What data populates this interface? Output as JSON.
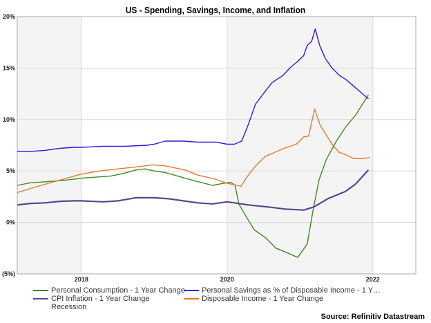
{
  "chart_data": {
    "type": "line",
    "title": "US - Spending, Savings, Income, and Inflation",
    "xlabel": "",
    "ylabel": "",
    "xlim": [
      2017.12,
      2022.59
    ],
    "ylim": [
      -5,
      20
    ],
    "yticks": [
      {
        "value": 20,
        "label": "20%"
      },
      {
        "value": 15,
        "label": "15%"
      },
      {
        "value": 10,
        "label": "10%"
      },
      {
        "value": 5,
        "label": "5%"
      },
      {
        "value": 0,
        "label": "0%"
      },
      {
        "value": -5,
        "label": "(5%)"
      }
    ],
    "xticks": [
      {
        "value": 2018,
        "label": "2018"
      },
      {
        "value": 2020,
        "label": "2020"
      },
      {
        "value": 2022,
        "label": "2022"
      }
    ],
    "bands": [
      {
        "from": 2017.12,
        "to": 2018,
        "color": "#f4f4f4"
      },
      {
        "from": 2020,
        "to": 2022,
        "color": "#f4f4f4"
      }
    ],
    "grid": true,
    "legend_position": "bottom",
    "series": [
      {
        "name": "Personal Consumption - 1 Year Change",
        "color": "#3f8a1f",
        "x": [
          2017.12,
          2017.3,
          2017.5,
          2017.7,
          2017.9,
          2018.0,
          2018.2,
          2018.4,
          2018.6,
          2018.75,
          2018.87,
          2019.0,
          2019.15,
          2019.35,
          2019.55,
          2019.8,
          2019.95,
          2020.05,
          2020.11,
          2020.16,
          2020.26,
          2020.37,
          2020.53,
          2020.67,
          2020.81,
          2020.97,
          2021.1,
          2021.18,
          2021.26,
          2021.36,
          2021.5,
          2021.62,
          2021.77,
          2021.94
        ],
        "values": [
          3.6,
          3.85,
          3.95,
          4.05,
          4.2,
          4.3,
          4.4,
          4.5,
          4.8,
          5.1,
          5.2,
          5.0,
          4.85,
          4.45,
          4.05,
          3.6,
          3.8,
          3.9,
          3.6,
          1.8,
          0.6,
          -0.7,
          -1.5,
          -2.5,
          -2.9,
          -3.4,
          -2.1,
          1.2,
          4.1,
          6.1,
          7.9,
          9.2,
          10.5,
          12.4
        ]
      },
      {
        "name": "Personal Savings as % of Disposable Income - 1 Y…",
        "color": "#3b12e0",
        "x": [
          2017.12,
          2017.3,
          2017.5,
          2017.7,
          2017.9,
          2018.0,
          2018.3,
          2018.6,
          2018.9,
          2019.0,
          2019.15,
          2019.4,
          2019.6,
          2019.85,
          2020.0,
          2020.1,
          2020.2,
          2020.29,
          2020.39,
          2020.53,
          2020.62,
          2020.77,
          2020.86,
          2020.96,
          2021.05,
          2021.1,
          2021.16,
          2021.21,
          2021.27,
          2021.35,
          2021.44,
          2021.54,
          2021.63,
          2021.94
        ],
        "values": [
          6.9,
          6.9,
          7.0,
          7.2,
          7.3,
          7.3,
          7.4,
          7.4,
          7.5,
          7.6,
          7.9,
          7.9,
          7.8,
          7.8,
          7.6,
          7.6,
          7.9,
          9.5,
          11.5,
          12.8,
          13.6,
          14.3,
          15.0,
          15.6,
          16.2,
          17.2,
          17.6,
          18.8,
          17.2,
          15.9,
          15.0,
          14.3,
          13.9,
          12.0
        ]
      },
      {
        "name": "CPI Inflation - 1 Year Change",
        "color": "#52488f",
        "x": [
          2017.12,
          2017.3,
          2017.5,
          2017.7,
          2017.9,
          2018.0,
          2018.3,
          2018.5,
          2018.75,
          2019.0,
          2019.2,
          2019.4,
          2019.6,
          2019.8,
          2020.0,
          2020.1,
          2020.29,
          2020.57,
          2020.8,
          2021.05,
          2021.19,
          2021.38,
          2021.62,
          2021.76,
          2021.94
        ],
        "values": [
          1.7,
          1.85,
          1.9,
          2.05,
          2.1,
          2.1,
          2.0,
          2.1,
          2.4,
          2.4,
          2.3,
          2.1,
          1.9,
          1.8,
          2.0,
          1.9,
          1.7,
          1.5,
          1.3,
          1.2,
          1.5,
          2.3,
          3.0,
          3.7,
          5.1
        ]
      },
      {
        "name": "Disposable Income - 1 Year Change",
        "color": "#e07a30",
        "x": [
          2017.12,
          2017.3,
          2017.5,
          2017.7,
          2017.9,
          2018.0,
          2018.25,
          2018.5,
          2018.77,
          2018.98,
          2019.15,
          2019.42,
          2019.6,
          2019.84,
          2020.0,
          2020.14,
          2020.19,
          2020.29,
          2020.38,
          2020.52,
          2020.65,
          2020.78,
          2020.95,
          2021.05,
          2021.12,
          2021.2,
          2021.28,
          2021.37,
          2021.45,
          2021.54,
          2021.62,
          2021.74,
          2021.85,
          2021.96
        ],
        "values": [
          2.9,
          3.3,
          3.7,
          4.1,
          4.5,
          4.7,
          5.0,
          5.2,
          5.4,
          5.6,
          5.5,
          5.1,
          4.6,
          4.2,
          3.8,
          3.6,
          3.5,
          4.6,
          5.4,
          6.4,
          6.8,
          7.2,
          7.6,
          8.3,
          8.4,
          11.0,
          9.4,
          8.4,
          7.5,
          6.8,
          6.6,
          6.2,
          6.2,
          6.3
        ]
      }
    ]
  },
  "legend": {
    "items": [
      {
        "label": "Personal Consumption - 1 Year Change",
        "color": "#3f8a1f"
      },
      {
        "label": "Personal Savings as % of Disposable Income - 1 Y…",
        "color": "#3b12e0"
      },
      {
        "label": "CPI Inflation - 1 Year Change",
        "color": "#52488f"
      },
      {
        "label": "Disposable Income - 1 Year Change",
        "color": "#e07a30"
      },
      {
        "label": "Recession",
        "color": ""
      }
    ]
  },
  "source": "Source: Refinitiv Datastream"
}
